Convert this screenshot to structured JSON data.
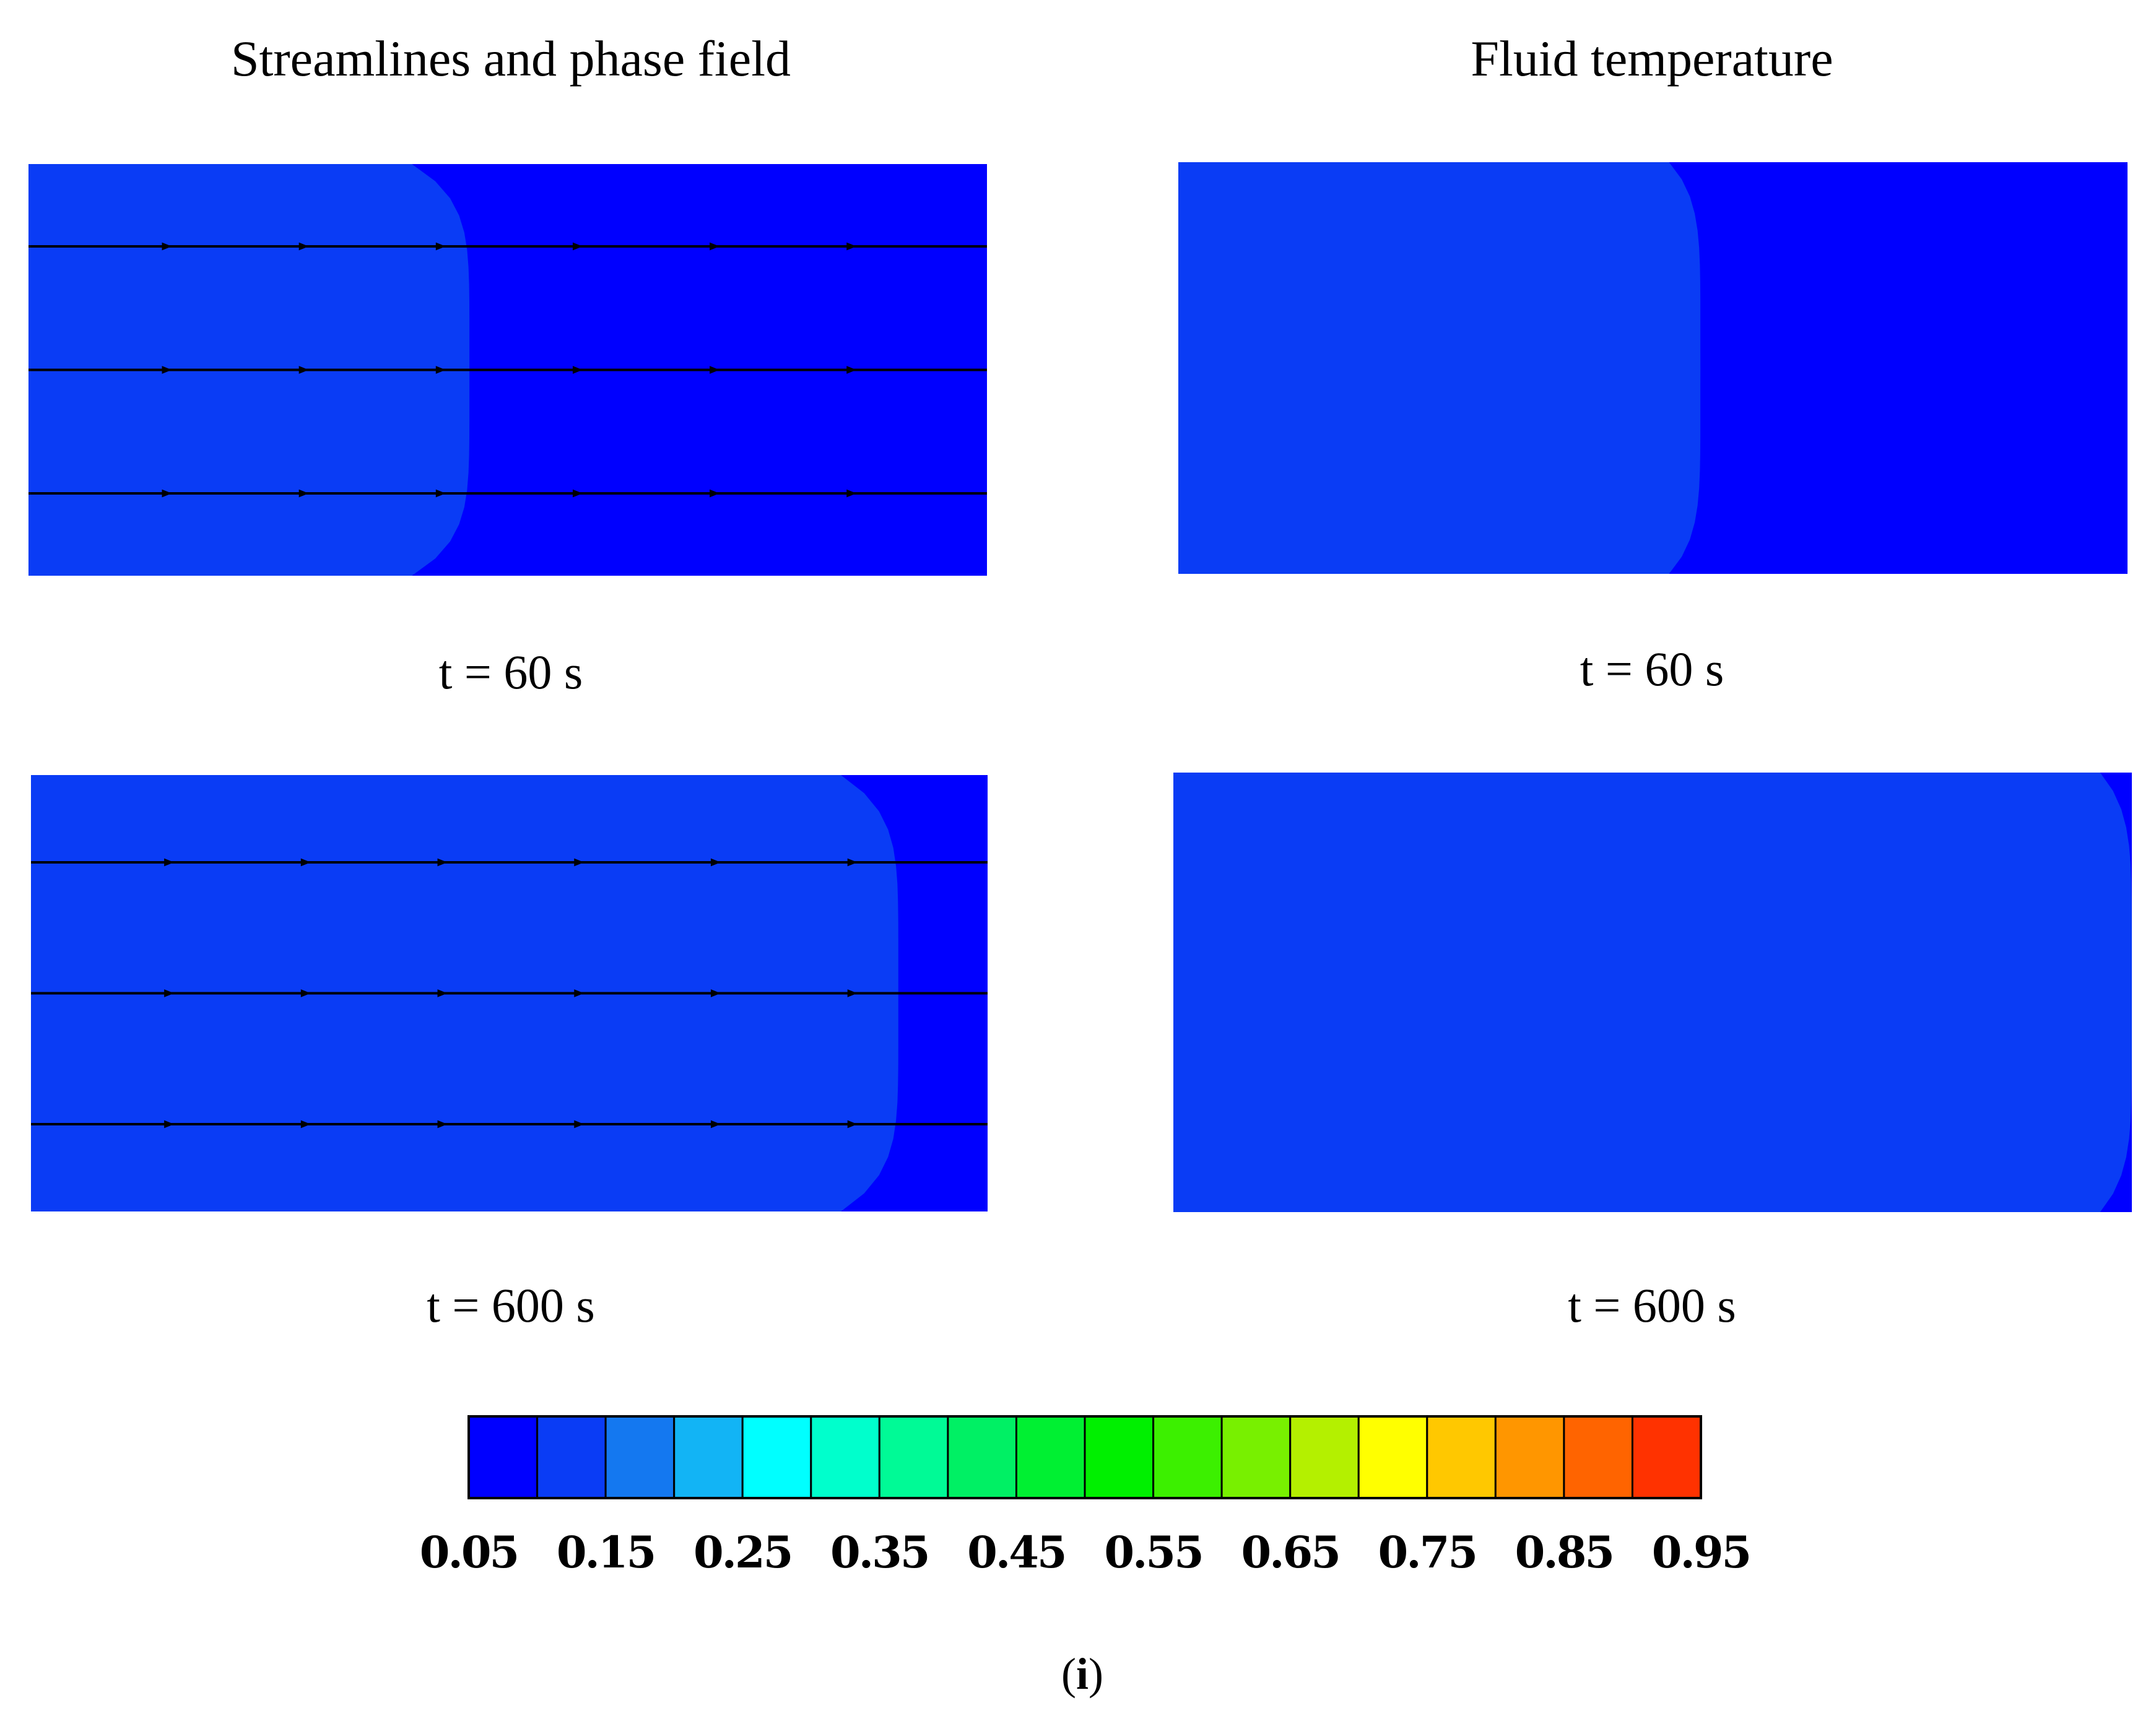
{
  "chart_data": {
    "type": "heatmap",
    "caption_label": "i",
    "panels": [
      {
        "title": "Streamlines and phase field",
        "time_label": "t = 60 s",
        "field": "phase",
        "front": 0.44,
        "width": 0.045,
        "streamlines": 3
      },
      {
        "title": "Fluid temperature",
        "time_label": "t = 60 s",
        "field": "temperature",
        "front": 0.52,
        "width": 0.55,
        "streamlines": 0
      },
      {
        "title": "",
        "time_label": "t = 600 s",
        "field": "phase",
        "front": 0.88,
        "width": 0.06,
        "streamlines": 3
      },
      {
        "title": "",
        "time_label": "t = 600 s",
        "field": "temperature",
        "front": 1.0,
        "width": 1.0,
        "streamlines": 0
      }
    ],
    "colorbar": {
      "levels": [
        0.05,
        0.1,
        0.15,
        0.2,
        0.25,
        0.3,
        0.35,
        0.4,
        0.45,
        0.5,
        0.55,
        0.6,
        0.65,
        0.7,
        0.75,
        0.8,
        0.85,
        0.9,
        0.95
      ],
      "tick_labels": [
        "0.05",
        "0.15",
        "0.25",
        "0.35",
        "0.45",
        "0.55",
        "0.65",
        "0.75",
        "0.85",
        "0.95"
      ],
      "colors": [
        "#0000ff",
        "#0a3cf5",
        "#1478f0",
        "#12b4f5",
        "#00ffff",
        "#00ffcc",
        "#00fa96",
        "#00f064",
        "#00f032",
        "#00f000",
        "#3cf000",
        "#78f000",
        "#b4f000",
        "#ffff00",
        "#ffc800",
        "#ff9600",
        "#ff6400",
        "#ff3200"
      ]
    }
  }
}
